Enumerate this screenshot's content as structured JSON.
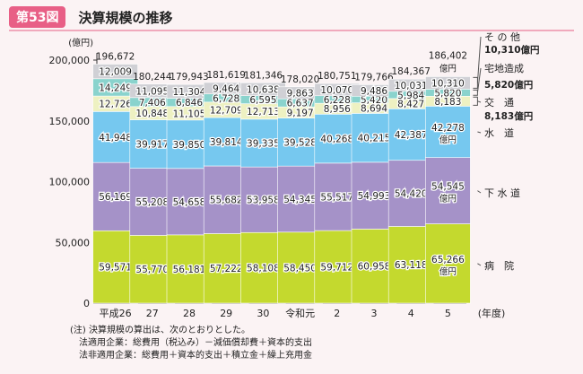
{
  "header": {
    "badge": "第53図",
    "title": "決算規模の推移"
  },
  "chart_data": {
    "type": "bar",
    "stacked": true,
    "title": "決算規模の推移",
    "unit_label": "(億円)",
    "xlabel": "(年度)",
    "ylim": [
      0,
      200000
    ],
    "yticks": [
      0,
      50000,
      100000,
      150000,
      200000
    ],
    "ytick_labels": [
      "0",
      "50,000",
      "100,000",
      "150,000",
      "200,000"
    ],
    "categories": [
      "平成26",
      "27",
      "28",
      "29",
      "30",
      "令和元",
      "2",
      "3",
      "4",
      "5"
    ],
    "totals": [
      196672,
      180244,
      179943,
      181619,
      181346,
      178020,
      180751,
      179766,
      184367,
      186402
    ],
    "total_labels": [
      "196,672",
      "180,244",
      "179,943",
      "181,619",
      "181,346",
      "178,020",
      "180,751",
      "179,766",
      "184,367",
      "186,402"
    ],
    "series": [
      {
        "name": "病院",
        "color": "#c4d92e",
        "values": [
          59571,
          55770,
          56181,
          57222,
          58108,
          58450,
          59712,
          60958,
          63118,
          65266
        ],
        "labels": [
          "59,571",
          "55,770",
          "56,181",
          "57,222",
          "58,108",
          "58,450",
          "59,712",
          "60,958",
          "63,118",
          "65,266"
        ]
      },
      {
        "name": "下水道",
        "color": "#a592c8",
        "values": [
          56169,
          55208,
          54658,
          55682,
          53958,
          54345,
          55517,
          54993,
          54420,
          54545
        ],
        "labels": [
          "56,169",
          "55,208",
          "54,658",
          "55,682",
          "53,958",
          "54,345",
          "55,517",
          "54,993",
          "54,420",
          "54,545"
        ]
      },
      {
        "name": "水道",
        "color": "#76c8ef",
        "values": [
          41948,
          39917,
          39850,
          39814,
          39335,
          39528,
          40268,
          40215,
          42387,
          42278
        ],
        "labels": [
          "41,948",
          "39,917",
          "39,850",
          "39,814",
          "39,335",
          "39,528",
          "40,268",
          "40,215",
          "42,387",
          "42,278"
        ]
      },
      {
        "name": "交通",
        "color": "#eef1c2",
        "values": [
          12726,
          10848,
          11105,
          12709,
          12713,
          9197,
          8956,
          8694,
          8427,
          8183
        ],
        "labels": [
          "12,726",
          "10,848",
          "11,105",
          "12,709",
          "12,713",
          "9,197",
          "8,956",
          "8,694",
          "8,427",
          "8,183"
        ]
      },
      {
        "name": "宅地造成",
        "color": "#8ad3cd",
        "values": [
          14249,
          7406,
          6846,
          6728,
          6595,
          6637,
          6228,
          5420,
          5984,
          5820
        ],
        "labels": [
          "14,249",
          "7,406",
          "6,846",
          "6,728",
          "6,595",
          "6,637",
          "6,228",
          "5,420",
          "5,984",
          "5,820"
        ]
      },
      {
        "name": "その他",
        "color": "#d0d0d5",
        "values": [
          12009,
          11095,
          11304,
          9464,
          10638,
          9863,
          10070,
          9486,
          10031,
          10310
        ],
        "labels": [
          "12,009",
          "11,095",
          "11,304",
          "9,464",
          "10,638",
          "9,863",
          "10,070",
          "9,486",
          "10,031",
          "10,310"
        ]
      }
    ],
    "last_bar_unit_suffix": "億円",
    "legend": [
      {
        "series": "その他",
        "name": "そ の 他",
        "value": "10,310億円"
      },
      {
        "series": "宅地造成",
        "name": "宅地造成",
        "value": "5,820億円"
      },
      {
        "series": "交通",
        "name": "交　通",
        "value": "8,183億円"
      },
      {
        "series": "水道",
        "name": "水　道",
        "value": ""
      },
      {
        "series": "下水道",
        "name": "下 水 道",
        "value": ""
      },
      {
        "series": "病院",
        "name": "病　院",
        "value": ""
      }
    ]
  },
  "notes": [
    "(注)  決算規模の算出は、次のとおりとした。",
    "法適用企業：総費用（税込み）－減価償却費＋資本的支出",
    "法非適用企業：総費用＋資本的支出＋積立金＋繰上充用金"
  ]
}
